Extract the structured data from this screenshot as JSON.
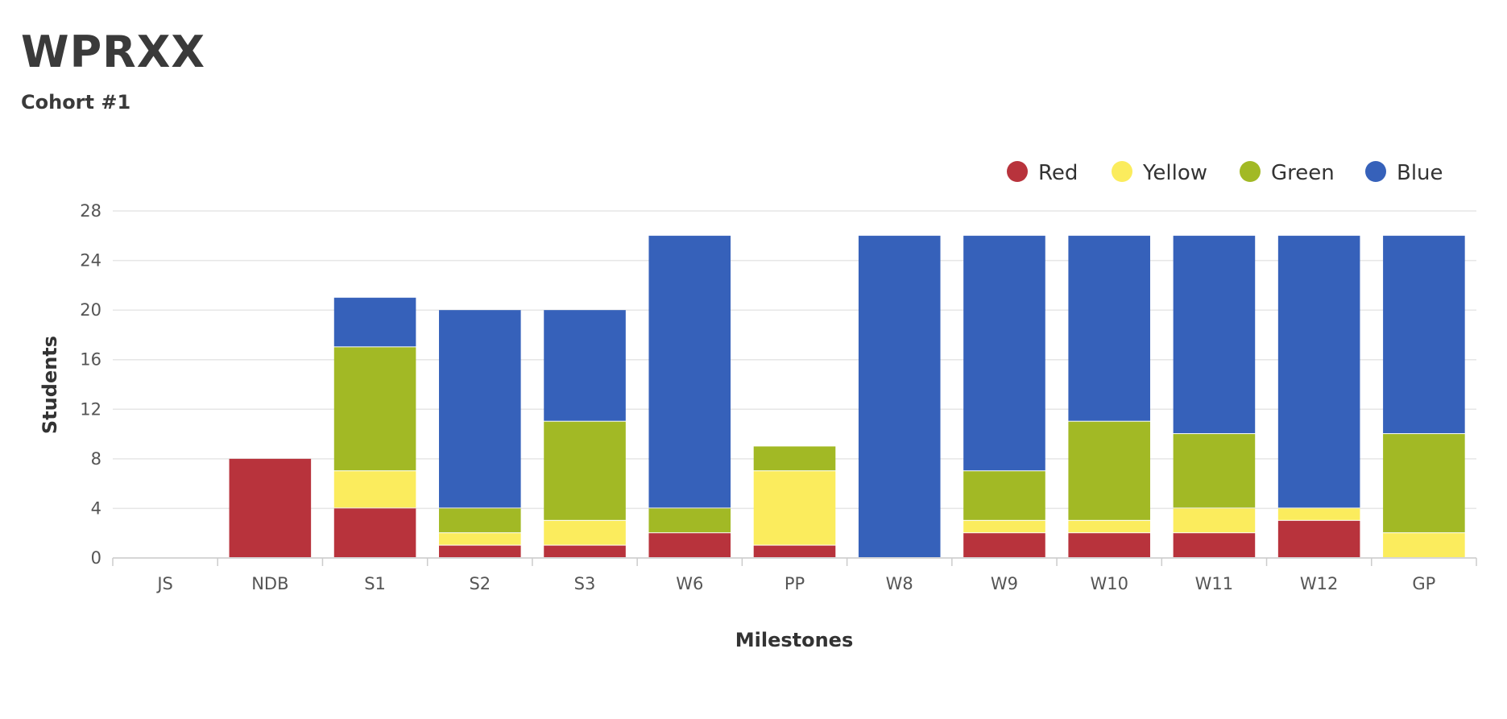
{
  "header": {
    "title": "WPRXX",
    "subtitle": "Cohort #1"
  },
  "colors": {
    "Red": "#b8333c",
    "Yellow": "#fbec5d",
    "Green": "#a2b925",
    "Blue": "#3661ba",
    "grid": "#e6e6e6",
    "axis": "#cccccc"
  },
  "chart_data": {
    "type": "bar",
    "stacked": true,
    "title": "WPRXX",
    "subtitle": "Cohort #1",
    "xlabel": "Milestones",
    "ylabel": "Students",
    "ylim": [
      0,
      28
    ],
    "yticks": [
      0,
      4,
      8,
      12,
      16,
      20,
      24,
      28
    ],
    "categories": [
      "JS",
      "NDB",
      "S1",
      "S2",
      "S3",
      "W6",
      "PP",
      "W8",
      "W9",
      "W10",
      "W11",
      "W12",
      "GP"
    ],
    "series": [
      {
        "name": "Red",
        "color": "#b8333c",
        "values": [
          0,
          8,
          4,
          1,
          1,
          2,
          1,
          0,
          2,
          2,
          2,
          3,
          0
        ]
      },
      {
        "name": "Yellow",
        "color": "#fbec5d",
        "values": [
          0,
          0,
          3,
          1,
          2,
          0,
          6,
          0,
          1,
          1,
          2,
          1,
          2
        ]
      },
      {
        "name": "Green",
        "color": "#a2b925",
        "values": [
          0,
          0,
          10,
          2,
          8,
          2,
          2,
          0,
          4,
          8,
          6,
          0,
          8
        ]
      },
      {
        "name": "Blue",
        "color": "#3661ba",
        "values": [
          0,
          0,
          4,
          16,
          9,
          22,
          0,
          26,
          19,
          15,
          16,
          22,
          16
        ]
      }
    ],
    "legend_position": "top-right",
    "grid": true
  }
}
